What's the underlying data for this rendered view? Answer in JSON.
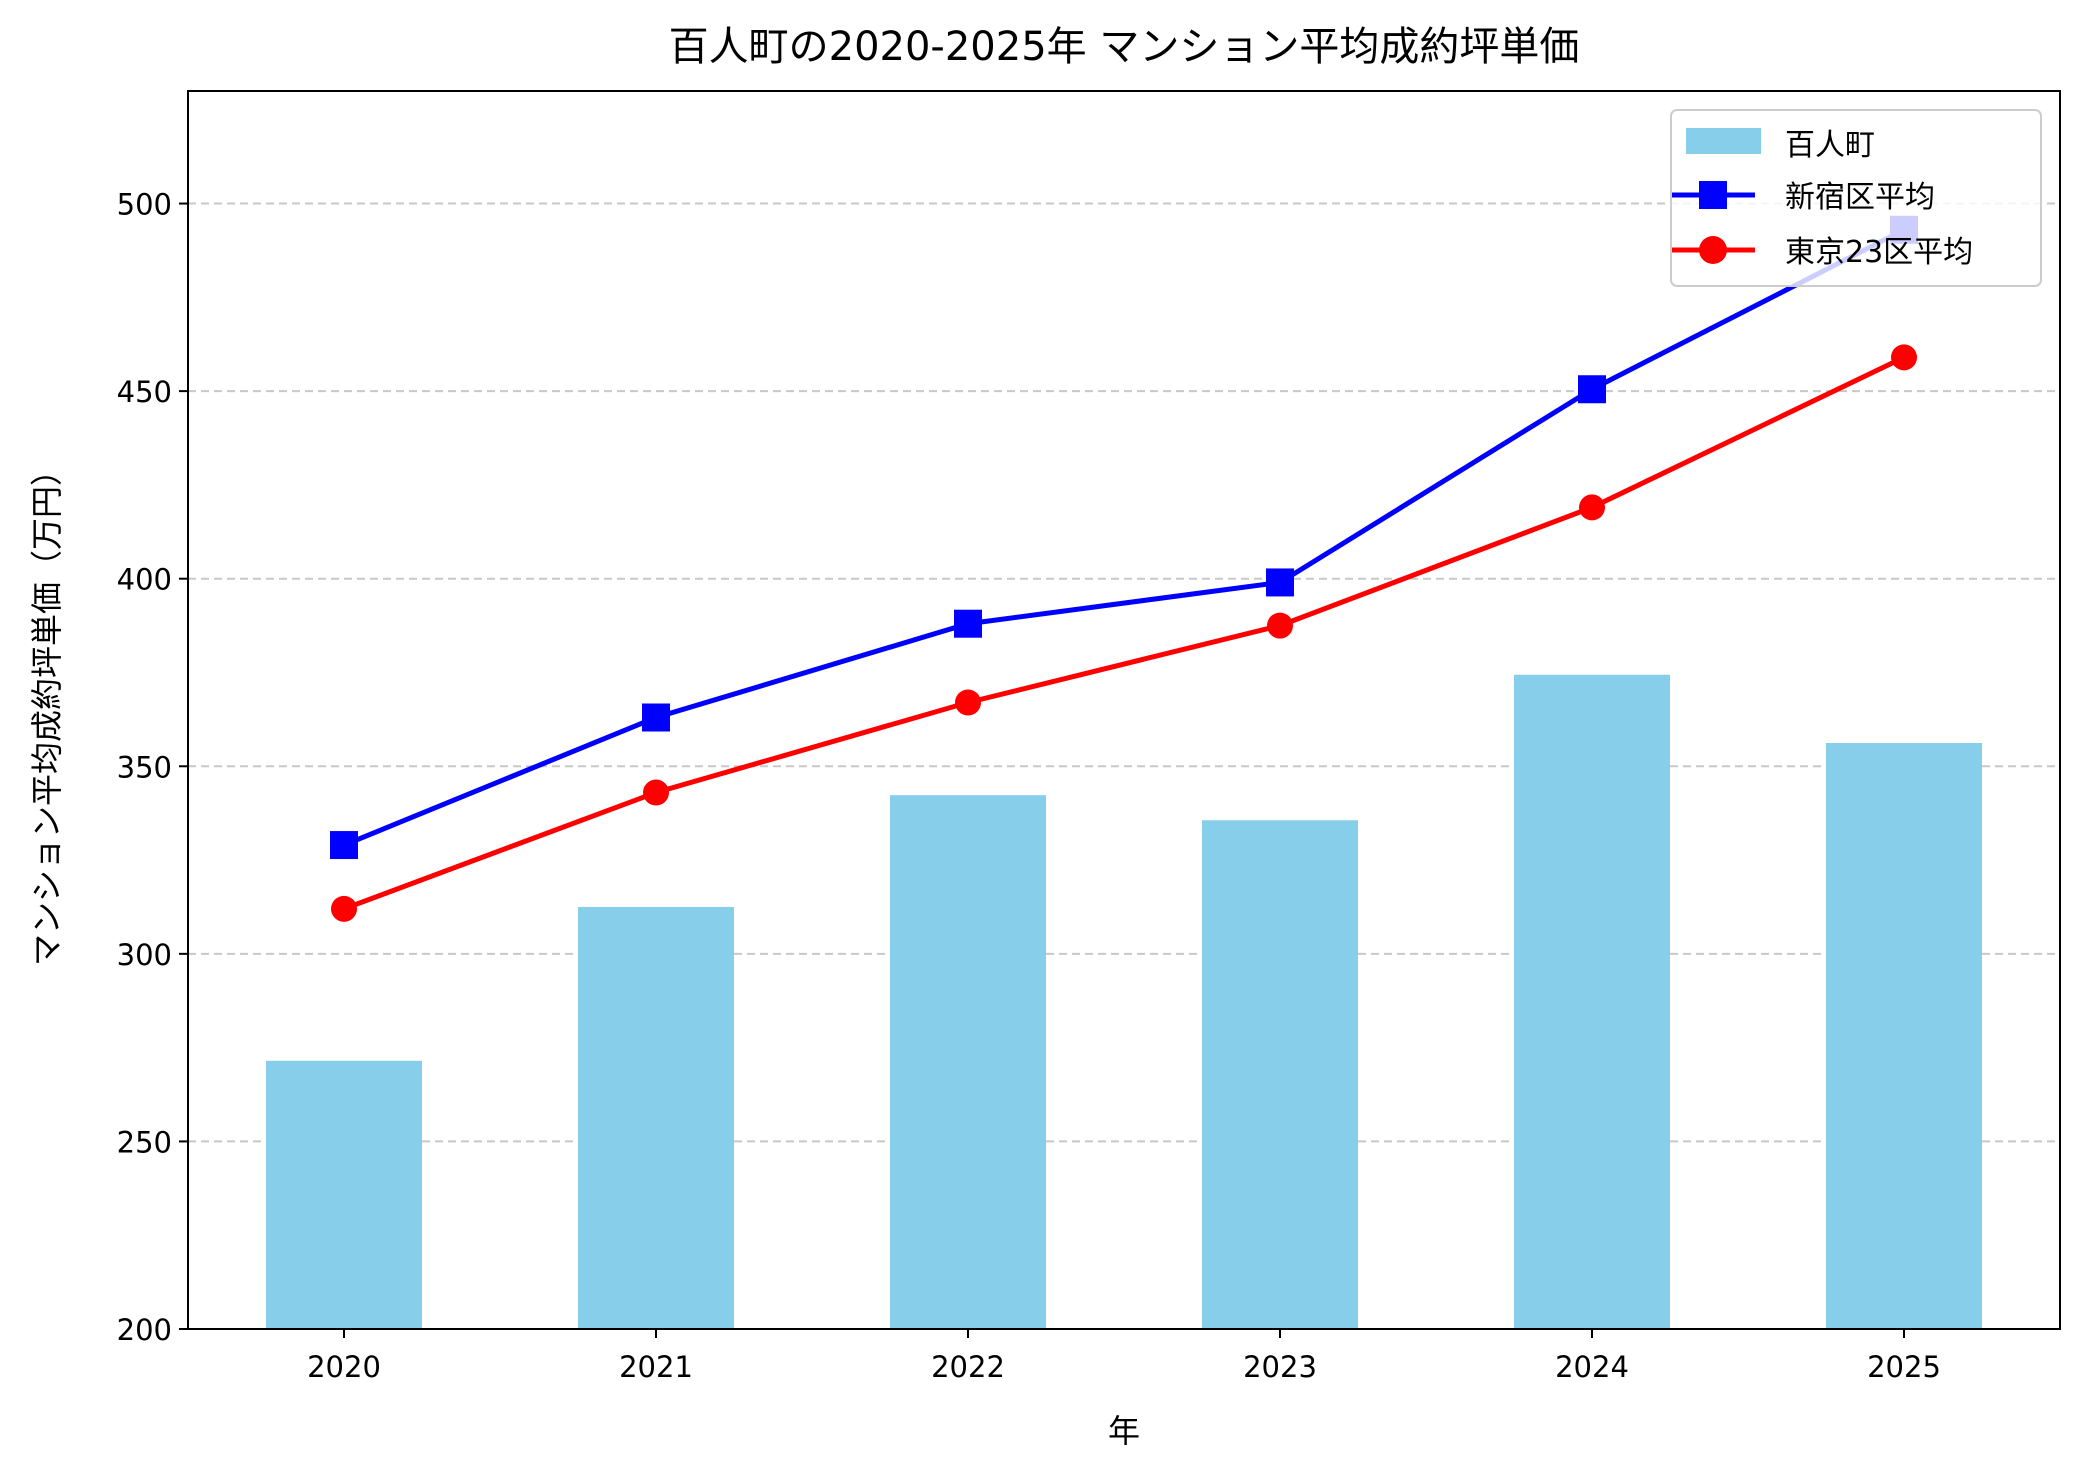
{
  "chart_data": {
    "type": "bar+line",
    "title": "百人町の2020-2025年 マンション平均成約坪単価",
    "xlabel": "年",
    "ylabel": "マンション平均成約坪単価（万円）",
    "categories": [
      "2020",
      "2021",
      "2022",
      "2023",
      "2024",
      "2025"
    ],
    "ylim": [
      200,
      530
    ],
    "yticks": [
      200,
      250,
      300,
      350,
      400,
      450,
      500
    ],
    "grid": "y-dashed",
    "legend_position": "top-right",
    "series": [
      {
        "name": "百人町",
        "kind": "bar",
        "color": "#87ceeb",
        "values": [
          271.5,
          312.5,
          342.3,
          335.6,
          374.4,
          356.2
        ]
      },
      {
        "name": "新宿区平均",
        "kind": "line",
        "marker": "square",
        "color": "#0000ff",
        "values": [
          329,
          363,
          388,
          399,
          450.5,
          493
        ]
      },
      {
        "name": "東京23区平均",
        "kind": "line",
        "marker": "circle",
        "color": "#ff0000",
        "values": [
          312,
          343,
          367,
          387.5,
          419,
          459
        ]
      }
    ]
  }
}
